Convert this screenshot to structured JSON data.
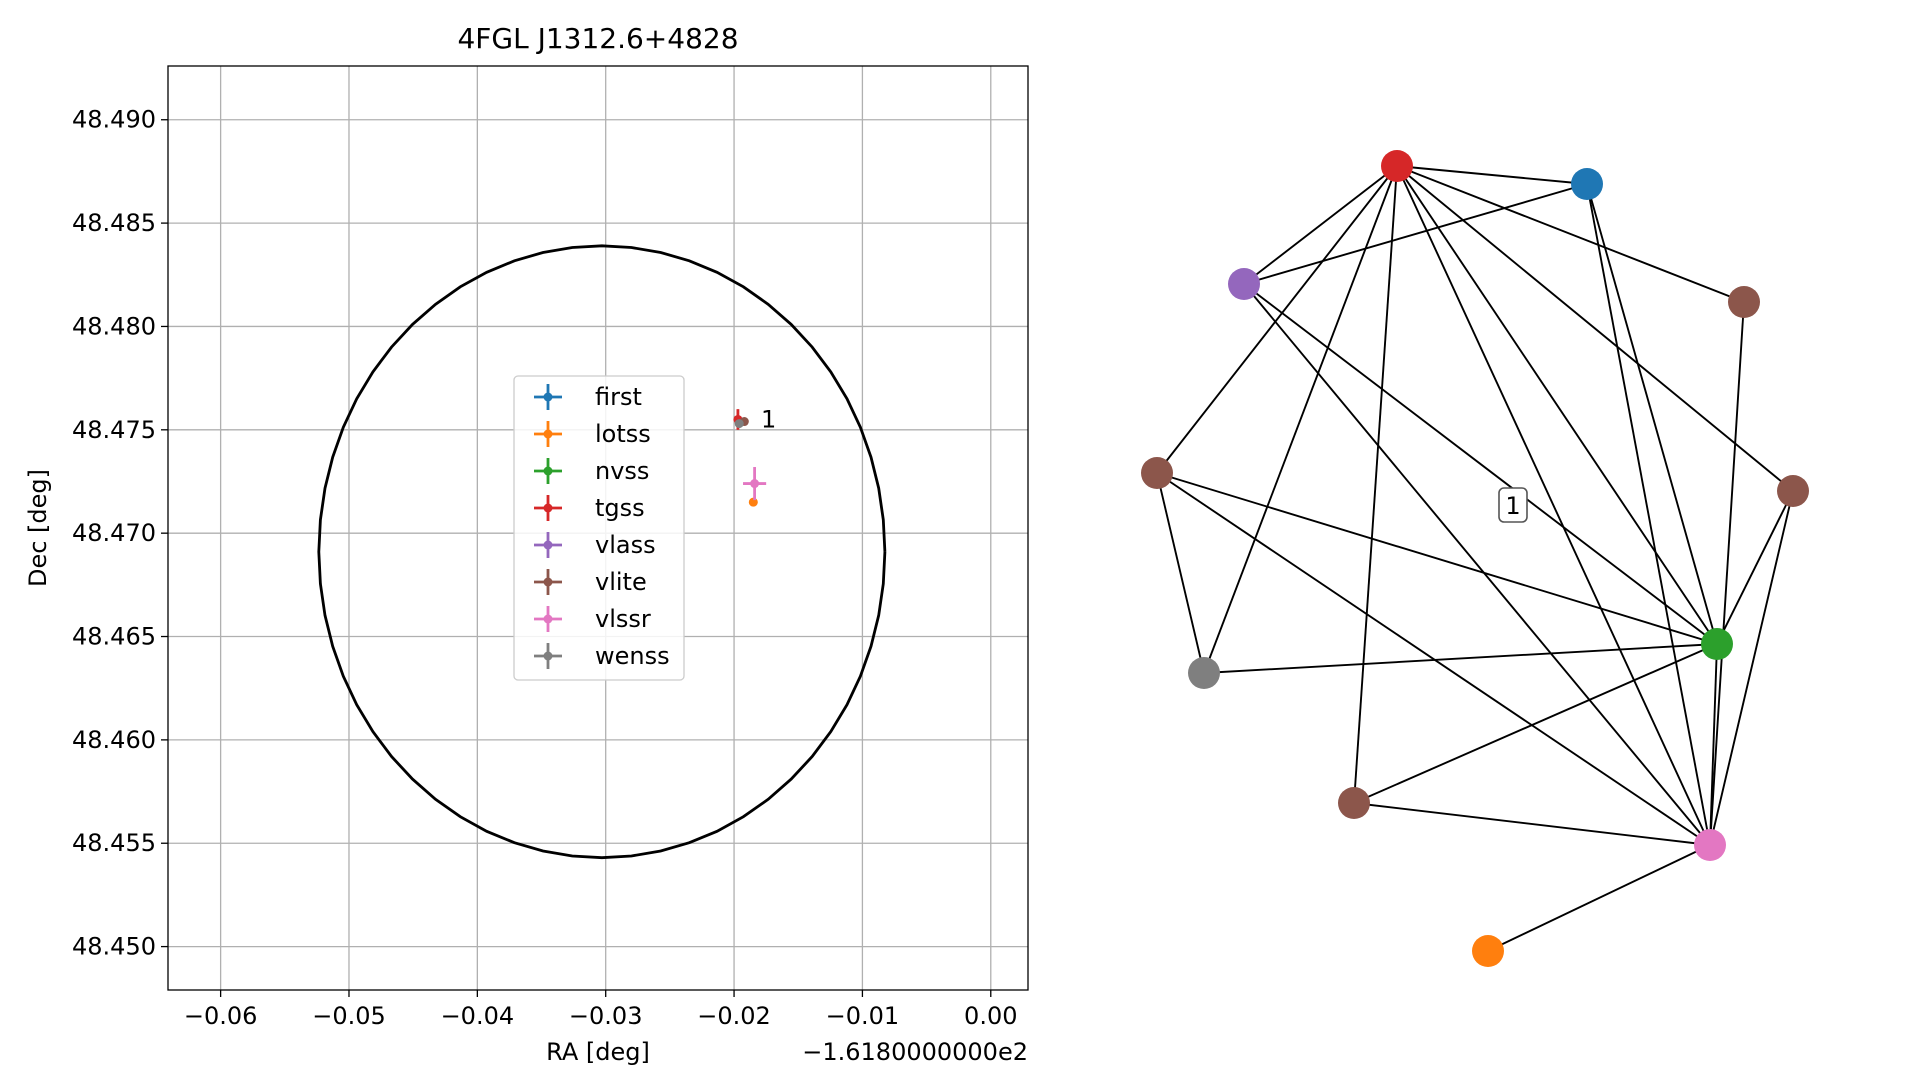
{
  "chart_data": [
    {
      "type": "scatter",
      "title": "4FGL J1312.6+4828",
      "xlabel": "RA [deg]",
      "ylabel": "Dec [deg]",
      "offset_text": "−1.6180000000e2",
      "xlim": [
        -0.0641,
        0.0029
      ],
      "ylim": [
        48.4479,
        48.4926
      ],
      "xticks": [
        -0.06,
        -0.05,
        -0.04,
        -0.03,
        -0.02,
        -0.01,
        0.0
      ],
      "xtick_labels": [
        "−0.06",
        "−0.05",
        "−0.04",
        "−0.03",
        "−0.02",
        "−0.01",
        "0.00"
      ],
      "yticks": [
        48.45,
        48.455,
        48.46,
        48.465,
        48.47,
        48.475,
        48.48,
        48.485,
        48.49
      ],
      "ytick_labels": [
        "48.450",
        "48.455",
        "48.460",
        "48.465",
        "48.470",
        "48.475",
        "48.480",
        "48.485",
        "48.490"
      ],
      "grid": true,
      "legend_position": "center",
      "error_ellipse": {
        "center": [
          -0.0303,
          48.4691
        ],
        "width": 0.0441,
        "height": 0.0296,
        "color": "#000000"
      },
      "series": [
        {
          "name": "first",
          "color": "#1f77b4",
          "points": []
        },
        {
          "name": "lotss",
          "color": "#ff7f0e",
          "points": [
            {
              "x": -0.0185,
              "y": 48.4715,
              "xerr": 0.0001,
              "yerr": 0.0001
            }
          ]
        },
        {
          "name": "nvss",
          "color": "#2ca02c",
          "points": []
        },
        {
          "name": "tgss",
          "color": "#d62728",
          "points": [
            {
              "x": -0.0197,
              "y": 48.4755,
              "xerr": 0.0003,
              "yerr": 0.0005
            }
          ]
        },
        {
          "name": "vlass",
          "color": "#9467bd",
          "points": []
        },
        {
          "name": "vlite",
          "color": "#8c564b",
          "points": [
            {
              "x": -0.0192,
              "y": 48.4754,
              "xerr": 0.0003,
              "yerr": 0.0001
            }
          ]
        },
        {
          "name": "vlssr",
          "color": "#e377c2",
          "points": [
            {
              "x": -0.0184,
              "y": 48.4724,
              "xerr": 0.0009,
              "yerr": 0.0008
            }
          ]
        },
        {
          "name": "wenss",
          "color": "#7f7f7f",
          "points": [
            {
              "x": -0.0196,
              "y": 48.4753,
              "xerr": 0.0001,
              "yerr": 0.0001
            }
          ]
        }
      ],
      "annotations": [
        {
          "text": "1",
          "x": -0.0179,
          "y": 48.4755
        }
      ]
    },
    {
      "type": "network",
      "cluster_label": "1",
      "nodes": [
        {
          "id": "tgss",
          "color": "#d62728"
        },
        {
          "id": "first",
          "color": "#1f77b4"
        },
        {
          "id": "vlass",
          "color": "#9467bd"
        },
        {
          "id": "vlite_a",
          "color": "#8c564b"
        },
        {
          "id": "vlite_b",
          "color": "#8c564b"
        },
        {
          "id": "vlite_c",
          "color": "#8c564b"
        },
        {
          "id": "nvss",
          "color": "#2ca02c"
        },
        {
          "id": "wenss",
          "color": "#7f7f7f"
        },
        {
          "id": "vlite_d",
          "color": "#8c564b"
        },
        {
          "id": "vlssr",
          "color": "#e377c2"
        },
        {
          "id": "lotss",
          "color": "#ff7f0e"
        }
      ],
      "edges": [
        [
          "tgss",
          "first"
        ],
        [
          "tgss",
          "vlass"
        ],
        [
          "tgss",
          "vlite_a"
        ],
        [
          "tgss",
          "vlite_b"
        ],
        [
          "tgss",
          "vlite_c"
        ],
        [
          "tgss",
          "nvss"
        ],
        [
          "tgss",
          "vlssr"
        ],
        [
          "tgss",
          "vlite_d"
        ],
        [
          "tgss",
          "wenss"
        ],
        [
          "first",
          "vlass"
        ],
        [
          "first",
          "nvss"
        ],
        [
          "first",
          "vlssr"
        ],
        [
          "vlass",
          "nvss"
        ],
        [
          "vlass",
          "vlssr"
        ],
        [
          "vlite_a",
          "vlssr"
        ],
        [
          "vlite_b",
          "nvss"
        ],
        [
          "vlite_b",
          "vlssr"
        ],
        [
          "vlite_c",
          "nvss"
        ],
        [
          "vlite_c",
          "wenss"
        ],
        [
          "vlite_c",
          "vlssr"
        ],
        [
          "nvss",
          "wenss"
        ],
        [
          "nvss",
          "vlssr"
        ],
        [
          "nvss",
          "vlite_d"
        ],
        [
          "vlite_d",
          "vlssr"
        ],
        [
          "vlssr",
          "lotss"
        ]
      ]
    }
  ]
}
